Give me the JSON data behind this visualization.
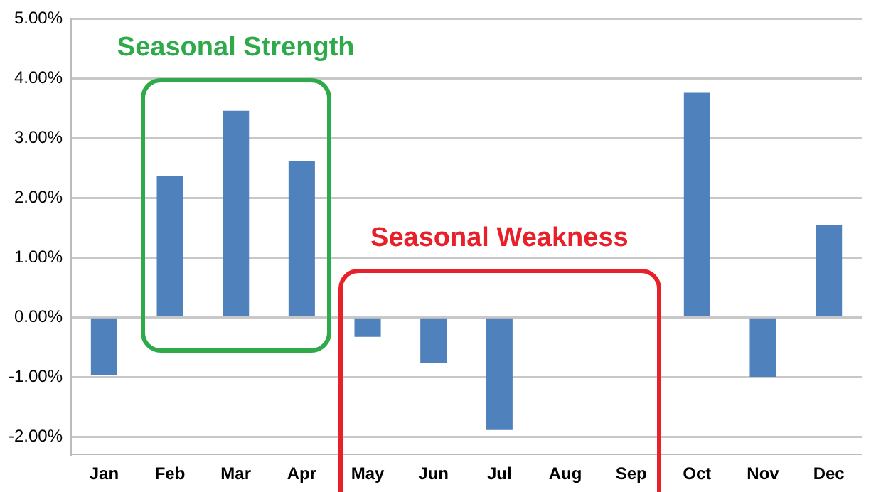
{
  "chart_data": {
    "type": "bar",
    "categories": [
      "Jan",
      "Feb",
      "Mar",
      "Apr",
      "May",
      "Jun",
      "Jul",
      "Aug",
      "Sep",
      "Oct",
      "Nov",
      "Dec"
    ],
    "values": [
      -0.97,
      2.37,
      3.46,
      2.61,
      -0.33,
      -0.77,
      -1.89,
      null,
      null,
      3.76,
      -1.0,
      1.55
    ],
    "color": "#4f81bd",
    "ylim": [
      -2.3,
      5.0
    ],
    "yticks": [
      {
        "value": -2,
        "label": "-2.00%"
      },
      {
        "value": -1,
        "label": "-1.00%"
      },
      {
        "value": 0,
        "label": "0.00%"
      },
      {
        "value": 1,
        "label": "1.00%"
      },
      {
        "value": 2,
        "label": "2.00%"
      },
      {
        "value": 3,
        "label": "3.00%"
      },
      {
        "value": 4,
        "label": "4.00%"
      },
      {
        "value": 5,
        "label": "5.00%"
      }
    ],
    "grid": "y",
    "legend": false,
    "annotations": [
      "Seasonal Strength",
      "Seasonal Weakness"
    ]
  }
}
